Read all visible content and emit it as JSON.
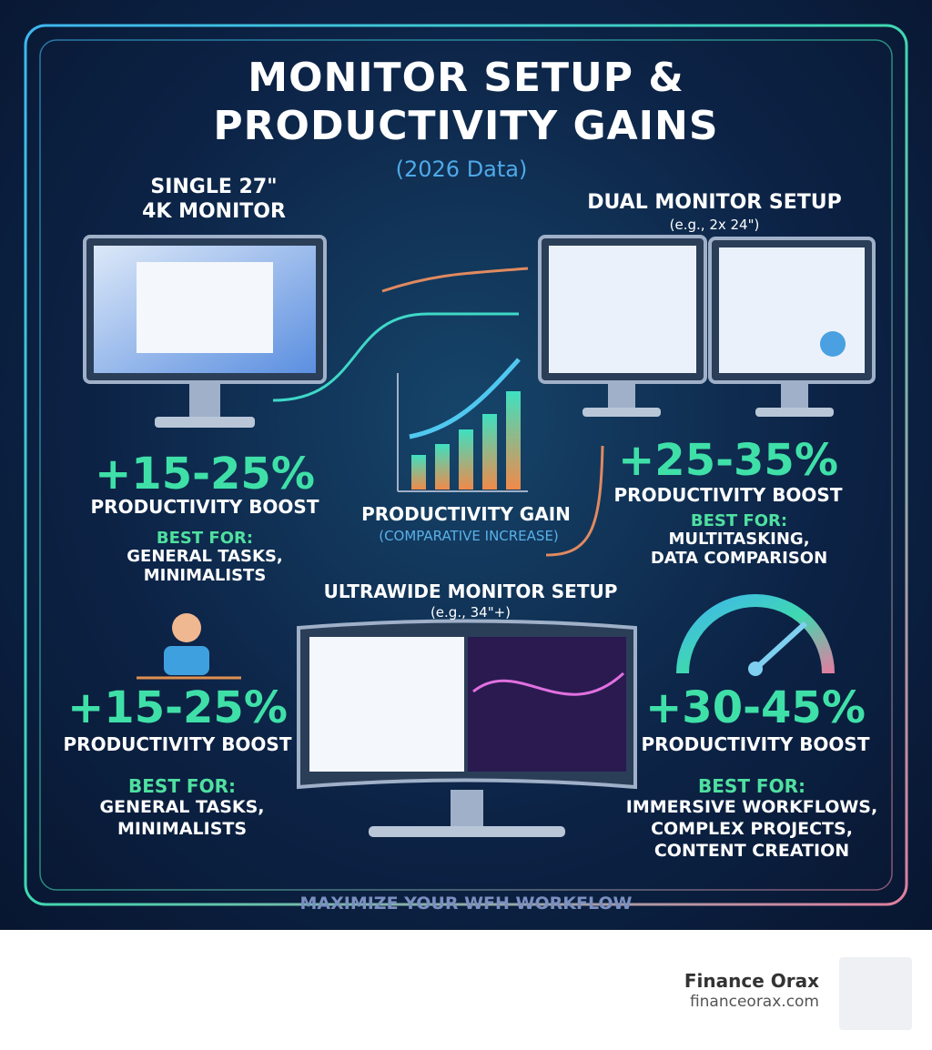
{
  "header": {
    "title_lines": [
      "MONITOR SETUP &",
      "PRODUCTIVITY GAINS"
    ],
    "subtitle": "(2026 Data)"
  },
  "panels": [
    {
      "heading_lines": [
        "SINGLE 27\"",
        "4K MONITOR"
      ],
      "boost": "+15-25%",
      "boost_label": "PRODUCTIVITY BOOST",
      "best_for_label": "BEST FOR:",
      "best_for": [
        "GENERAL TASKS,",
        "MINIMALISTS"
      ]
    },
    {
      "heading_lines": [
        "DUAL MONITOR SETUP",
        "(e.g., 2x 24\")"
      ],
      "boost": "+25-35%",
      "boost_label": "PRODUCTIVITY BOOST",
      "best_for_label": "BEST FOR:",
      "best_for": [
        "MULTITASKING,",
        "DATA COMPARISON"
      ]
    },
    {
      "boost": "+15-25%",
      "boost_label": "PRODUCTIVITY BOOST",
      "best_for_label": "BEST FOR:",
      "best_for": [
        "GENERAL TASKS,",
        "MINIMALISTS"
      ]
    },
    {
      "boost": "+30-45%",
      "boost_label": "PRODUCTIVITY BOOST",
      "best_for_label": "BEST FOR:",
      "best_for": [
        "IMMERSIVE WORKFLOWS,",
        "COMPLEX PROJECTS,",
        "CONTENT CREATION"
      ]
    }
  ],
  "center": {
    "label": "PRODUCTIVITY GAIN",
    "sublabel": "(COMPARATIVE INCREASE)"
  },
  "ultrawide": {
    "heading": "ULTRAWIDE MONITOR SETUP",
    "example": "(e.g., 34\"+)"
  },
  "footer": {
    "tagline": "MAXIMIZE YOUR WFH WORKFLOW"
  },
  "brand": {
    "name": "Finance Orax",
    "url": "financeorax.com"
  }
}
